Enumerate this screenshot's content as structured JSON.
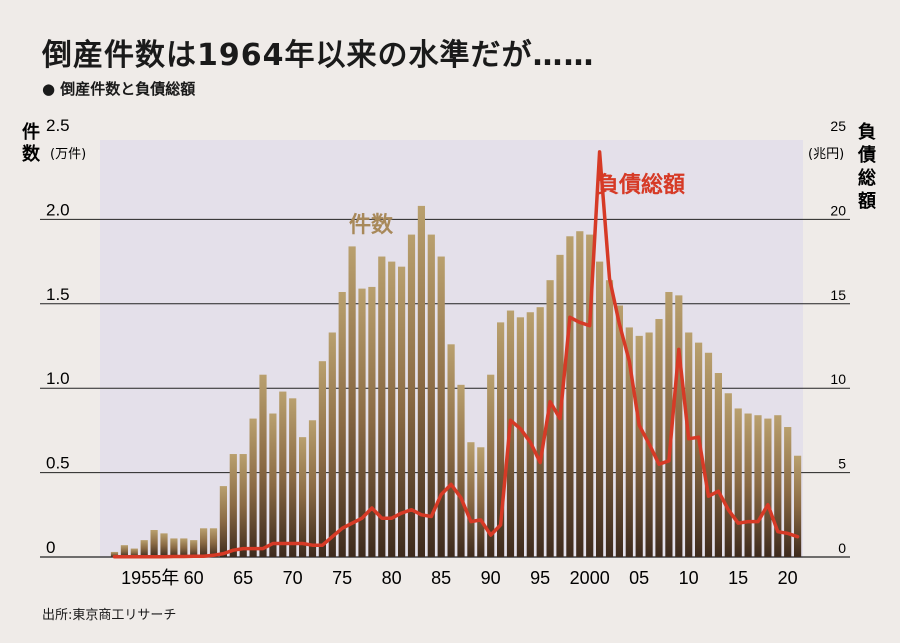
{
  "header": {
    "title": "倒産件数は1964年以来の水準だが……",
    "subtitle": "● 倒産件数と負債総額"
  },
  "footer": {
    "source": "出所:東京商工リサーチ"
  },
  "chart_data": {
    "type": "bar",
    "left_axis": {
      "label_chars": [
        "件",
        "数"
      ],
      "unit": "(万件)",
      "ylim": [
        0,
        2.5
      ],
      "ticks": [
        "0",
        "0.5",
        "1.0",
        "1.5",
        "2.0",
        "2.5"
      ]
    },
    "right_axis": {
      "label_chars": [
        "負",
        "債",
        "総",
        "額"
      ],
      "unit": "(兆円)",
      "ylim": [
        0,
        25
      ],
      "ticks": [
        "0",
        "5",
        "10",
        "15",
        "20",
        "25"
      ]
    },
    "x_ticks": [
      {
        "year": 1955,
        "label": "1955年"
      },
      {
        "year": 1960,
        "label": "60"
      },
      {
        "year": 1965,
        "label": "65"
      },
      {
        "year": 1970,
        "label": "70"
      },
      {
        "year": 1975,
        "label": "75"
      },
      {
        "year": 1980,
        "label": "80"
      },
      {
        "year": 1985,
        "label": "85"
      },
      {
        "year": 1990,
        "label": "90"
      },
      {
        "year": 1995,
        "label": "95"
      },
      {
        "year": 2000,
        "label": "2000"
      },
      {
        "year": 2005,
        "label": "05"
      },
      {
        "year": 2010,
        "label": "10"
      },
      {
        "year": 2015,
        "label": "15"
      },
      {
        "year": 2020,
        "label": "20"
      }
    ],
    "years": [
      1952,
      1953,
      1954,
      1955,
      1956,
      1957,
      1958,
      1959,
      1960,
      1961,
      1962,
      1963,
      1964,
      1965,
      1966,
      1967,
      1968,
      1969,
      1970,
      1971,
      1972,
      1973,
      1974,
      1975,
      1976,
      1977,
      1978,
      1979,
      1980,
      1981,
      1982,
      1983,
      1984,
      1985,
      1986,
      1987,
      1988,
      1989,
      1990,
      1991,
      1992,
      1993,
      1994,
      1995,
      1996,
      1997,
      1998,
      1999,
      2000,
      2001,
      2002,
      2003,
      2004,
      2005,
      2006,
      2007,
      2008,
      2009,
      2010,
      2011,
      2012,
      2013,
      2014,
      2015,
      2016,
      2017,
      2018,
      2019,
      2020,
      2021
    ],
    "series": [
      {
        "name": "件数",
        "axis": "left",
        "unit": "万件",
        "color": "#a8895a",
        "values": [
          0.03,
          0.07,
          0.05,
          0.1,
          0.16,
          0.14,
          0.11,
          0.11,
          0.1,
          0.17,
          0.17,
          0.42,
          0.61,
          0.61,
          0.82,
          1.08,
          0.85,
          0.98,
          0.94,
          0.71,
          0.81,
          1.16,
          1.33,
          1.57,
          1.84,
          1.59,
          1.6,
          1.78,
          1.75,
          1.72,
          1.91,
          2.08,
          1.91,
          1.78,
          1.26,
          1.02,
          0.68,
          0.65,
          1.08,
          1.39,
          1.46,
          1.42,
          1.45,
          1.48,
          1.64,
          1.79,
          1.9,
          1.93,
          1.91,
          1.75,
          1.64,
          1.49,
          1.36,
          1.31,
          1.33,
          1.41,
          1.57,
          1.55,
          1.33,
          1.27,
          1.21,
          1.09,
          0.97,
          0.88,
          0.85,
          0.84,
          0.82,
          0.84,
          0.77,
          0.6
        ]
      },
      {
        "name": "負債総額",
        "axis": "right",
        "unit": "兆円",
        "color": "#d63a26",
        "values": [
          0.02,
          0.02,
          0.02,
          0.02,
          0.02,
          0.02,
          0.03,
          0.03,
          0.04,
          0.05,
          0.1,
          0.2,
          0.4,
          0.5,
          0.5,
          0.5,
          0.8,
          0.8,
          0.8,
          0.8,
          0.7,
          0.7,
          1.2,
          1.7,
          2.0,
          2.3,
          2.9,
          2.3,
          2.3,
          2.6,
          2.8,
          2.5,
          2.4,
          3.7,
          4.3,
          3.5,
          2.1,
          2.2,
          1.3,
          1.9,
          8.1,
          7.6,
          6.8,
          5.6,
          9.2,
          8.2,
          14.2,
          13.9,
          13.7,
          24.0,
          16.5,
          13.8,
          11.6,
          7.8,
          6.7,
          5.5,
          5.7,
          12.3,
          7.0,
          7.1,
          3.6,
          3.9,
          2.8,
          2.0,
          2.1,
          2.1,
          3.1,
          1.5,
          1.4,
          1.2
        ]
      }
    ],
    "annotations": [
      "件数",
      "負債総額"
    ],
    "gridlines": true
  }
}
